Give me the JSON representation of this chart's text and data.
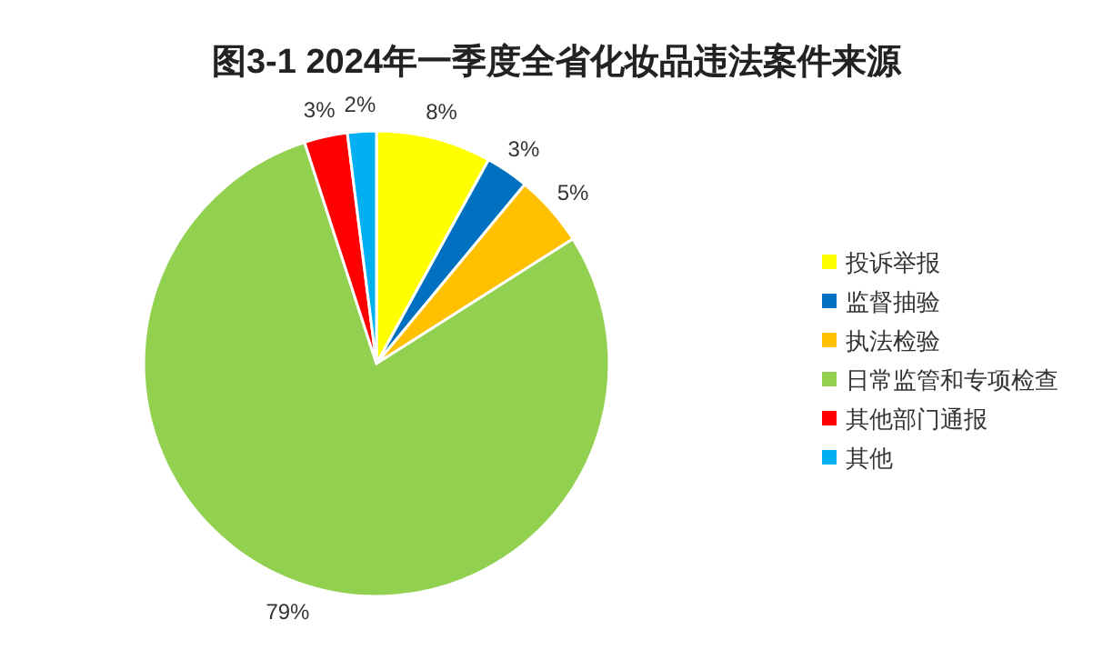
{
  "chart_data": {
    "type": "pie",
    "title": "图3-1  2024年一季度全省化妆品违法案件来源",
    "categories": [
      "投诉举报",
      "监督抽验",
      "执法检验",
      "日常监管和专项检查",
      "其他部门通报",
      "其他"
    ],
    "values": [
      8,
      3,
      5,
      79,
      3,
      2
    ],
    "colors": [
      "#ffff00",
      "#0070c0",
      "#ffc000",
      "#92d050",
      "#ff0000",
      "#00b0f0"
    ],
    "value_labels": [
      "8%",
      "3%",
      "5%",
      "79%",
      "3%",
      "2%"
    ],
    "legend": "right"
  }
}
